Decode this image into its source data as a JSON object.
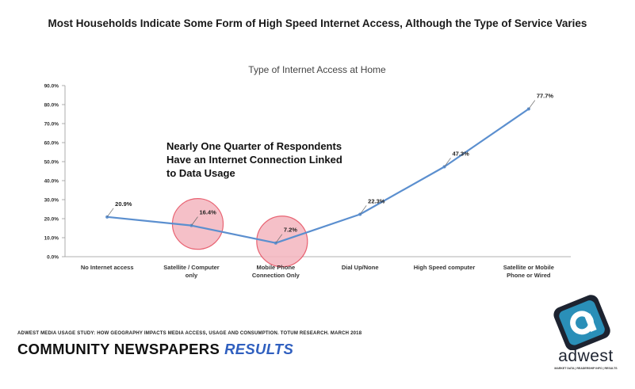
{
  "slide_title": "Most Households Indicate Some Form of High Speed Internet Access, Although the Type of Service Varies",
  "callout": "Nearly One Quarter of Respondents Have an Internet Connection Linked to Data Usage",
  "footer": {
    "source": "ADWEST MEDIA USAGE STUDY: HOW GEOGRAPHY IMPACTS MEDIA ACCESS, USAGE AND CONSUMPTION. TOTUM RESEARCH. MARCH 2018",
    "brand": "COMMUNITY NEWSPAPERS",
    "results": "RESULTS"
  },
  "logo": {
    "word": "adwest",
    "tagline": "MARKET DATA | READERSHIP INFO | RESULTS",
    "colors": {
      "dark": "#1d2330",
      "accent": "#2a8fb8"
    }
  },
  "colors": {
    "line": "#5b8fcf",
    "highlight_fill": "#f4b6bf",
    "highlight_stroke": "#e5485a"
  },
  "chart_data": {
    "type": "line",
    "title": "Type of Internet Access at Home",
    "categories": [
      [
        "No Internet access"
      ],
      [
        "Satellite / Computer",
        "only"
      ],
      [
        "Mobile Phone",
        "Connection Only"
      ],
      [
        "Dial Up/None"
      ],
      [
        "High Speed computer"
      ],
      [
        "Satellite or Mobile",
        "Phone or Wired"
      ]
    ],
    "values": [
      20.9,
      16.4,
      7.2,
      22.3,
      47.3,
      77.7
    ],
    "data_labels": [
      "20.9%",
      "16.4%",
      "7.2%",
      "22.3%",
      "47.3%",
      "77.7%"
    ],
    "highlighted_indices": [
      1,
      2
    ],
    "ylim": [
      0,
      90
    ],
    "yticks": [
      "0.0%",
      "10.0%",
      "20.0%",
      "30.0%",
      "40.0%",
      "50.0%",
      "60.0%",
      "70.0%",
      "80.0%",
      "90.0%"
    ],
    "grid": false,
    "legend": "none"
  }
}
